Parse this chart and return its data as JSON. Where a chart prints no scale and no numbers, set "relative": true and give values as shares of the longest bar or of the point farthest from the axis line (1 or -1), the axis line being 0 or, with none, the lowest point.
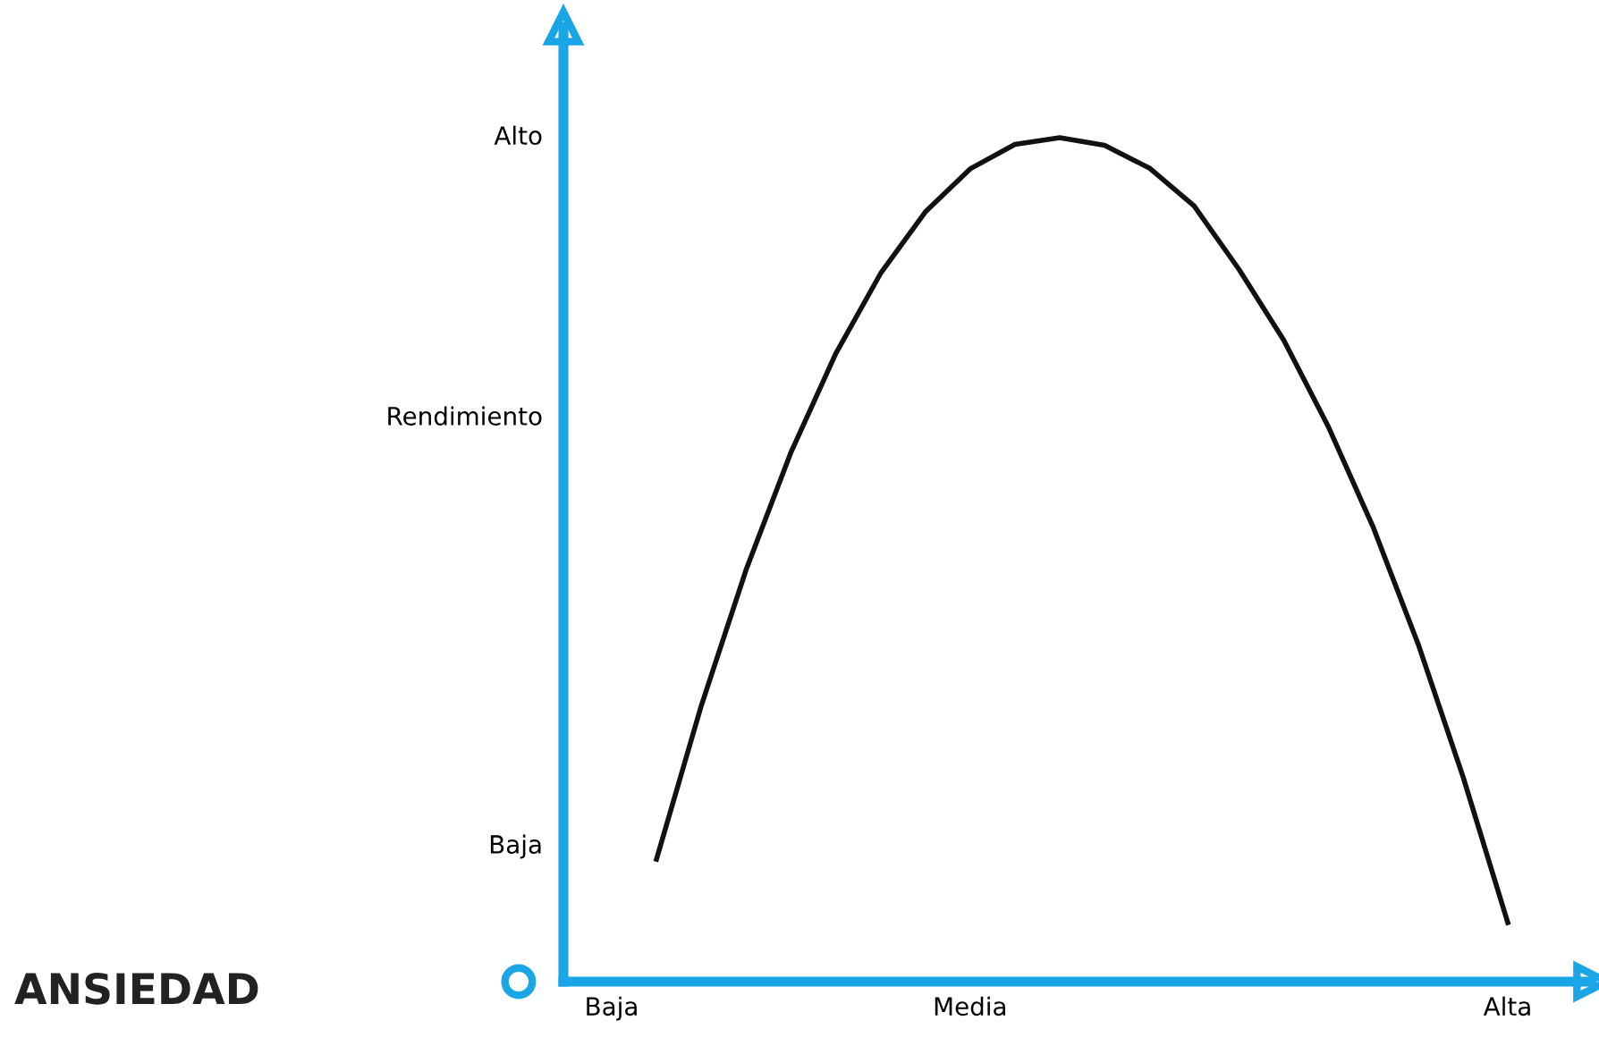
{
  "chart_data": {
    "type": "line",
    "relative": true,
    "ylabel": "Rendimiento",
    "annotations": [
      "Alto",
      "Baja",
      "ANSIEDAD"
    ],
    "categories": [
      "Baja",
      null,
      null,
      null,
      null,
      null,
      null,
      null,
      "Media",
      null,
      null,
      null,
      null,
      null,
      null,
      null,
      null,
      null,
      null,
      null,
      "Alta"
    ],
    "series": [
      {
        "color": "#111111",
        "values": [
          null,
          0.145,
          0.327,
          0.488,
          0.627,
          0.744,
          0.839,
          0.912,
          0.963,
          0.992,
          1.0,
          0.991,
          0.964,
          0.919,
          0.844,
          0.76,
          0.657,
          0.538,
          0.4,
          0.243,
          0.07
        ]
      }
    ],
    "grid": false,
    "marker": "none",
    "line_style": "solid"
  }
}
